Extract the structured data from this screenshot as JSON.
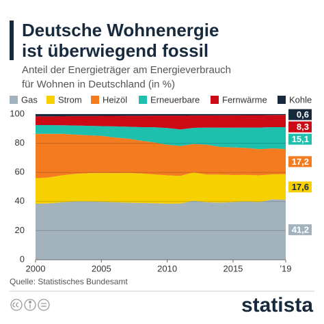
{
  "chart_data": {
    "type": "stacked_area",
    "title": [
      "Deutsche Wohnenergie",
      "ist überwiegend fossil"
    ],
    "subtitle": [
      "Anteil der Energieträger am Energieverbrauch",
      "für Wohnen in Deutschland (in %)"
    ],
    "x": [
      2000,
      2001,
      2002,
      2003,
      2004,
      2005,
      2006,
      2007,
      2008,
      2009,
      2010,
      2011,
      2012,
      2013,
      2014,
      2015,
      2016,
      2017,
      2018,
      2019
    ],
    "xlim": [
      2000,
      2019
    ],
    "xticks": [
      2000,
      2005,
      2010,
      2015,
      {
        "value": 2019,
        "label": "'19"
      }
    ],
    "ylim": [
      0,
      100
    ],
    "yticks": [
      0,
      20,
      40,
      60,
      80,
      100
    ],
    "grid": true,
    "series": [
      {
        "name": "Gas",
        "color": "#a3b3bd",
        "values": [
          38.5,
          38.7,
          39.5,
          40.0,
          40.0,
          39.8,
          39.5,
          39.2,
          39.0,
          38.8,
          38.5,
          38.6,
          40.5,
          39.5,
          39.2,
          39.6,
          40.0,
          39.6,
          41.5,
          41.2
        ],
        "value_labels": [
          null,
          null,
          null,
          null,
          null,
          null,
          null,
          null,
          null,
          null,
          null,
          null,
          null,
          null,
          null,
          null,
          null,
          null,
          null,
          "41,2"
        ]
      },
      {
        "name": "Strom",
        "color": "#f6d000",
        "values": [
          17.5,
          17.8,
          18.5,
          19.0,
          19.5,
          19.8,
          20.0,
          20.5,
          20.3,
          19.8,
          19.5,
          19.0,
          19.5,
          19.0,
          19.3,
          18.6,
          18.3,
          18.4,
          17.2,
          17.6
        ],
        "value_labels": [
          null,
          null,
          null,
          null,
          null,
          null,
          null,
          null,
          null,
          null,
          null,
          null,
          null,
          null,
          null,
          null,
          null,
          null,
          null,
          "17,6"
        ]
      },
      {
        "name": "Heizöl",
        "color": "#f47b20",
        "values": [
          30.5,
          30.0,
          28.5,
          27.0,
          26.0,
          25.5,
          24.5,
          23.5,
          22.5,
          22.0,
          21.0,
          20.5,
          19.5,
          20.5,
          19.0,
          19.0,
          18.5,
          18.0,
          17.8,
          17.2
        ],
        "value_labels": [
          null,
          null,
          null,
          null,
          null,
          null,
          null,
          null,
          null,
          null,
          null,
          null,
          null,
          null,
          null,
          null,
          null,
          null,
          null,
          "17,2"
        ]
      },
      {
        "name": "Erneuerbare",
        "color": "#1fbfae",
        "values": [
          6.0,
          6.0,
          5.9,
          6.2,
          6.5,
          6.7,
          7.6,
          8.2,
          9.3,
          10.4,
          11.5,
          11.4,
          11.1,
          11.8,
          13.2,
          13.5,
          14.0,
          14.8,
          14.6,
          15.1
        ],
        "value_labels": [
          null,
          null,
          null,
          null,
          null,
          null,
          null,
          null,
          null,
          null,
          null,
          null,
          null,
          null,
          null,
          null,
          null,
          null,
          null,
          "15,1"
        ]
      },
      {
        "name": "Fernwärme",
        "color": "#cc0a16",
        "values": [
          6.0,
          6.0,
          6.2,
          6.5,
          6.7,
          7.0,
          7.2,
          7.5,
          7.8,
          8.0,
          8.5,
          9.5,
          8.5,
          8.3,
          8.5,
          8.5,
          8.5,
          8.5,
          8.3,
          8.3
        ],
        "value_labels": [
          null,
          null,
          null,
          null,
          null,
          null,
          null,
          null,
          null,
          null,
          null,
          null,
          null,
          null,
          null,
          null,
          null,
          null,
          null,
          "8,3"
        ]
      },
      {
        "name": "Kohle",
        "color": "#17293d",
        "values": [
          1.5,
          1.5,
          1.4,
          1.3,
          1.3,
          1.2,
          1.2,
          1.1,
          1.1,
          1.0,
          1.0,
          1.0,
          0.9,
          0.9,
          0.8,
          0.8,
          0.7,
          0.7,
          0.6,
          0.6
        ],
        "value_labels": [
          null,
          null,
          null,
          null,
          null,
          null,
          null,
          null,
          null,
          null,
          null,
          null,
          null,
          null,
          null,
          null,
          null,
          null,
          null,
          "0,6"
        ]
      }
    ],
    "source": "Quelle: Statistisches Bundesamt",
    "brand": "statista"
  }
}
